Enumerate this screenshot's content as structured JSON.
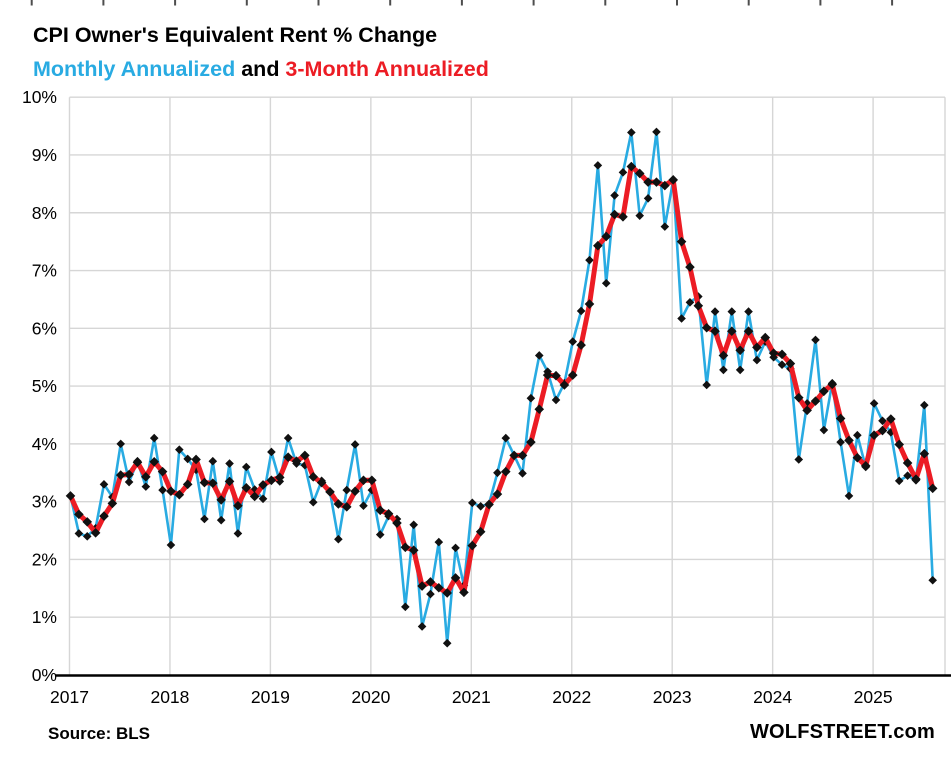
{
  "header": {
    "title": "CPI Owner's Equivalent Rent % Change",
    "subtitle_monthly": "Monthly Annualized",
    "subtitle_and": " and ",
    "subtitle_3mo": "3-Month Annualized"
  },
  "footer": {
    "source": "Source: BLS",
    "watermark": "WOLFSTREET.com"
  },
  "colors": {
    "monthly_line": "#29abe2",
    "three_month_line": "#ec1c24",
    "marker": "#111111",
    "grid": "#d6d6d6",
    "axis": "#000000",
    "top_tick": "#4d4d4d"
  },
  "chart_data": {
    "type": "line",
    "title": "CPI Owner's Equivalent Rent % Change",
    "xlabel": "",
    "ylabel": "",
    "x_start": "2017-01",
    "x_end": "2025-08",
    "points_per_year": 12,
    "x_tick_labels": [
      "2017",
      "2018",
      "2019",
      "2020",
      "2021",
      "2022",
      "2023",
      "2024",
      "2025"
    ],
    "y_tick_labels": [
      "0%",
      "1%",
      "2%",
      "3%",
      "4%",
      "5%",
      "6%",
      "7%",
      "8%",
      "9%",
      "10%"
    ],
    "ylim": [
      0,
      10
    ],
    "grid": true,
    "legend_position": "in-subtitle",
    "marker_shape": "diamond",
    "series": [
      {
        "name": "Monthly Annualized",
        "color": "#29abe2",
        "line_width": 2.6,
        "values": [
          3.1,
          2.45,
          2.4,
          2.54,
          3.3,
          3.08,
          4.0,
          3.34,
          3.7,
          3.26,
          4.1,
          3.2,
          2.25,
          3.9,
          3.74,
          3.55,
          2.7,
          3.7,
          2.68,
          3.66,
          2.45,
          3.6,
          3.21,
          3.05,
          3.86,
          3.35,
          4.1,
          3.66,
          3.63,
          2.99,
          3.36,
          3.17,
          2.35,
          3.2,
          3.99,
          2.93,
          3.2,
          2.43,
          2.75,
          2.7,
          1.18,
          2.6,
          0.84,
          1.4,
          2.3,
          0.55,
          2.2,
          1.55,
          2.98,
          2.92,
          2.96,
          3.5,
          4.1,
          3.8,
          3.49,
          4.79,
          5.53,
          5.25,
          4.76,
          5.05,
          5.77,
          6.3,
          7.18,
          8.82,
          6.78,
          8.3,
          8.7,
          9.39,
          7.95,
          8.25,
          9.4,
          7.76,
          8.56,
          6.17,
          6.45,
          6.55,
          5.02,
          6.29,
          5.28,
          6.29,
          5.28,
          6.29,
          5.45,
          5.77,
          5.5,
          5.37,
          5.3,
          3.73,
          4.7,
          5.8,
          4.24,
          5.05,
          4.03,
          3.1,
          4.15,
          3.6,
          4.7,
          4.4,
          4.2,
          3.36,
          3.45,
          3.37,
          4.67,
          1.64
        ]
      },
      {
        "name": "3-Month Annualized",
        "color": "#ec1c24",
        "line_width": 5,
        "values": [
          3.1,
          2.78,
          2.65,
          2.46,
          2.75,
          2.97,
          3.46,
          3.47,
          3.68,
          3.43,
          3.69,
          3.52,
          3.18,
          3.12,
          3.3,
          3.73,
          3.33,
          3.32,
          3.03,
          3.35,
          2.93,
          3.24,
          3.09,
          3.29,
          3.37,
          3.42,
          3.77,
          3.7,
          3.8,
          3.43,
          3.33,
          3.17,
          2.96,
          2.91,
          3.18,
          3.37,
          3.37,
          2.85,
          2.79,
          2.63,
          2.21,
          2.16,
          1.54,
          1.61,
          1.51,
          1.42,
          1.68,
          1.43,
          2.24,
          2.48,
          2.95,
          3.13,
          3.52,
          3.8,
          3.8,
          4.03,
          4.6,
          5.19,
          5.18,
          5.02,
          5.19,
          5.71,
          6.42,
          7.43,
          7.59,
          7.97,
          7.93,
          8.8,
          8.68,
          8.53,
          8.53,
          8.47,
          8.57,
          7.5,
          7.06,
          6.39,
          6.01,
          5.95,
          5.53,
          5.95,
          5.62,
          5.95,
          5.67,
          5.84,
          5.57,
          5.55,
          5.39,
          4.8,
          4.58,
          4.74,
          4.91,
          5.03,
          4.44,
          4.06,
          3.76,
          3.62,
          4.15,
          4.23,
          4.43,
          3.99,
          3.67,
          3.39,
          3.83,
          3.23
        ]
      }
    ]
  }
}
